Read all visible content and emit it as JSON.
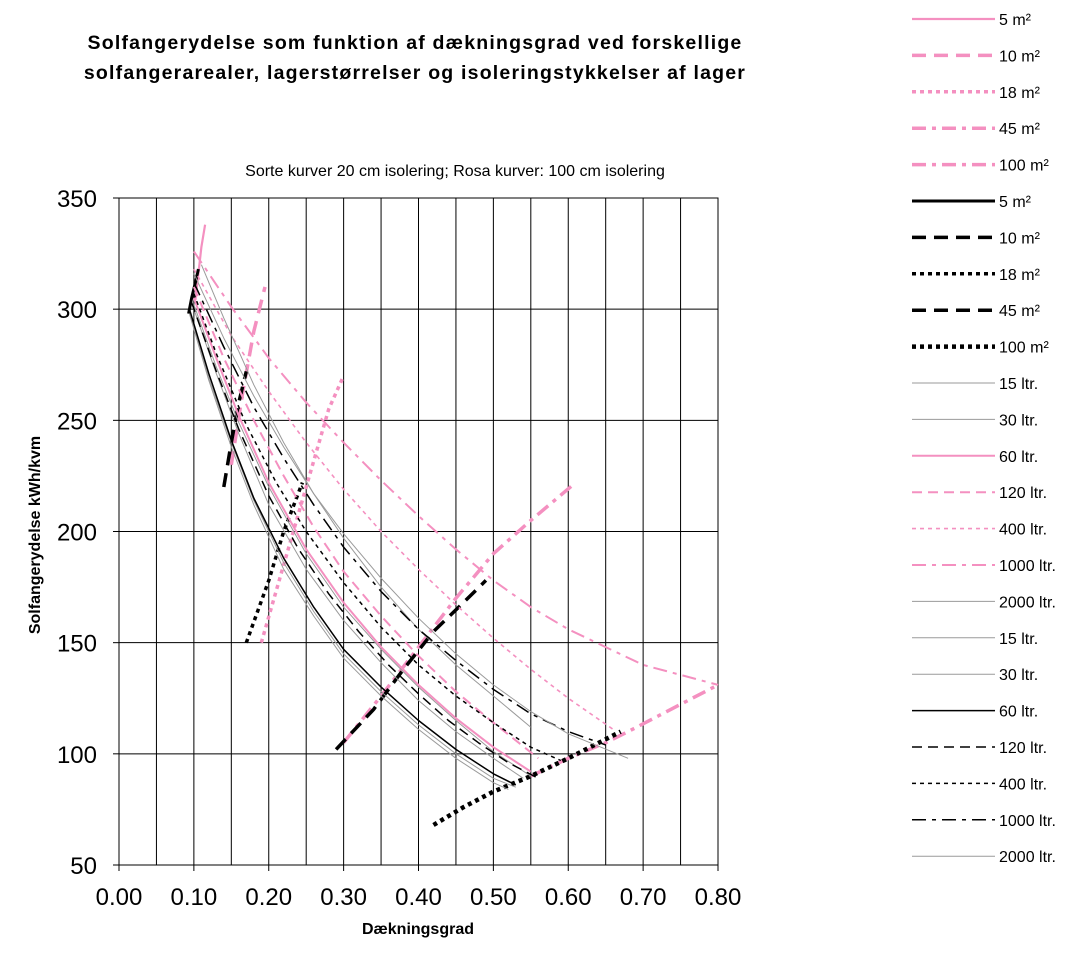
{
  "chart_data": {
    "type": "line",
    "title_line1": "Solfangerydelse som funktion af dækningsgrad ved forskellige",
    "title_line2": "solfangerarealer, lagerstørrelser og isoleringstykkelser af lager",
    "subtitle": "Sorte kurver 20 cm isolering; Rosa kurver: 100 cm isolering",
    "xlabel": "Dækningsgrad",
    "ylabel": "Solfangerydelse kWh/kvm",
    "xlim": [
      0.0,
      0.8
    ],
    "ylim": [
      50,
      350
    ],
    "x_ticks": [
      "0.00",
      "0.10",
      "0.20",
      "0.30",
      "0.40",
      "0.50",
      "0.60",
      "0.70",
      "0.80"
    ],
    "y_ticks": [
      "50",
      "100",
      "150",
      "200",
      "250",
      "300",
      "350"
    ],
    "x_grid_step": 0.05,
    "grid": true,
    "legend_position": "right",
    "colors": {
      "pink": "#f490c0",
      "black": "#000000",
      "grey": "#9a9a9a"
    },
    "series": [
      {
        "name": "5 m²",
        "color": "#f490c0",
        "style": "solid",
        "width": 2.2,
        "x": [
          0.102,
          0.106,
          0.11,
          0.115
        ],
        "y": [
          304,
          316,
          328,
          338
        ]
      },
      {
        "name": "10 m²",
        "color": "#f490c0",
        "style": "longdash",
        "width": 3.5,
        "x": [
          0.15,
          0.165,
          0.18,
          0.195
        ],
        "y": [
          230,
          262,
          290,
          310
        ]
      },
      {
        "name": "18 m²",
        "color": "#f490c0",
        "style": "dot",
        "width": 3.5,
        "x": [
          0.19,
          0.22,
          0.25,
          0.28,
          0.3
        ],
        "y": [
          150,
          185,
          220,
          255,
          270
        ]
      },
      {
        "name": "45 m²",
        "color": "#f490c0",
        "style": "dashdot",
        "width": 3.5,
        "x": [
          0.3,
          0.35,
          0.4,
          0.45,
          0.5,
          0.55,
          0.61
        ],
        "y": [
          105,
          126,
          148,
          170,
          190,
          205,
          222
        ]
      },
      {
        "name": "100 m²",
        "color": "#f490c0",
        "style": "dashdot",
        "width": 3.5,
        "x": [
          0.55,
          0.6,
          0.65,
          0.68,
          0.72,
          0.76,
          0.8
        ],
        "y": [
          90,
          98,
          105,
          110,
          117,
          124,
          131
        ]
      },
      {
        "name": "5 m²",
        "color": "#000000",
        "style": "solid",
        "width": 3,
        "x": [
          0.093,
          0.097,
          0.102,
          0.106
        ],
        "y": [
          298,
          305,
          312,
          318
        ]
      },
      {
        "name": "10 m²",
        "color": "#000000",
        "style": "longdash",
        "width": 3.5,
        "x": [
          0.14,
          0.15,
          0.16,
          0.17
        ],
        "y": [
          220,
          240,
          258,
          272
        ]
      },
      {
        "name": "18 m²",
        "color": "#000000",
        "style": "dot",
        "width": 3.5,
        "x": [
          0.17,
          0.2,
          0.22,
          0.245
        ],
        "y": [
          150,
          178,
          200,
          222
        ]
      },
      {
        "name": "45 m²",
        "color": "#000000",
        "style": "longdash",
        "width": 3.5,
        "x": [
          0.29,
          0.34,
          0.38,
          0.42,
          0.46,
          0.49
        ],
        "y": [
          102,
          120,
          138,
          155,
          168,
          178
        ]
      },
      {
        "name": "100 m²",
        "color": "#000000",
        "style": "dot",
        "width": 4.5,
        "x": [
          0.42,
          0.46,
          0.5,
          0.55,
          0.6,
          0.67
        ],
        "y": [
          68,
          76,
          83,
          90,
          98,
          110
        ]
      },
      {
        "name": "15 ltr.",
        "color": "#9a9a9a",
        "style": "solid",
        "width": 1,
        "x": [
          0.1,
          0.13,
          0.16,
          0.2,
          0.25,
          0.3,
          0.35,
          0.4,
          0.45,
          0.5,
          0.54
        ],
        "y": [
          300,
          271,
          244,
          212,
          183,
          160,
          141,
          124,
          110,
          98,
          89
        ]
      },
      {
        "name": "30 ltr.",
        "color": "#9a9a9a",
        "style": "solid",
        "width": 1,
        "x": [
          0.1,
          0.13,
          0.16,
          0.2,
          0.25,
          0.3,
          0.35,
          0.4,
          0.45,
          0.5,
          0.55
        ],
        "y": [
          302,
          274,
          249,
          220,
          190,
          166,
          147,
          130,
          115,
          101,
          90
        ]
      },
      {
        "name": "60 ltr.",
        "color": "#f490c0",
        "style": "solid",
        "width": 2,
        "x": [
          0.1,
          0.13,
          0.16,
          0.2,
          0.25,
          0.3,
          0.35,
          0.4,
          0.45,
          0.5,
          0.55
        ],
        "y": [
          305,
          278,
          252,
          222,
          192,
          168,
          148,
          131,
          116,
          103,
          92
        ]
      },
      {
        "name": "120 ltr.",
        "color": "#f490c0",
        "style": "dash",
        "width": 2,
        "x": [
          0.1,
          0.14,
          0.18,
          0.22,
          0.26,
          0.3,
          0.35,
          0.4,
          0.45,
          0.5,
          0.56
        ],
        "y": [
          310,
          278,
          250,
          225,
          202,
          182,
          162,
          144,
          128,
          114,
          98
        ]
      },
      {
        "name": "400 ltr.",
        "color": "#f490c0",
        "style": "dot",
        "width": 1.6,
        "x": [
          0.1,
          0.15,
          0.2,
          0.25,
          0.3,
          0.35,
          0.4,
          0.45,
          0.5,
          0.55,
          0.6,
          0.66
        ],
        "y": [
          318,
          288,
          263,
          240,
          219,
          200,
          183,
          167,
          152,
          138,
          125,
          111
        ]
      },
      {
        "name": "1000 ltr.",
        "color": "#f490c0",
        "style": "dashdot",
        "width": 2,
        "x": [
          0.1,
          0.15,
          0.2,
          0.25,
          0.3,
          0.35,
          0.4,
          0.45,
          0.5,
          0.55,
          0.6,
          0.7,
          0.8
        ],
        "y": [
          326,
          301,
          278,
          258,
          240,
          223,
          207,
          192,
          178,
          166,
          156,
          140,
          131
        ]
      },
      {
        "name": "2000 ltr.",
        "color": "#9a9a9a",
        "style": "solid",
        "width": 1,
        "x": [
          0.11,
          0.14,
          0.18,
          0.22,
          0.26,
          0.3,
          0.35,
          0.4,
          0.45,
          0.5,
          0.55
        ],
        "y": [
          320,
          296,
          266,
          240,
          217,
          197,
          175,
          156,
          140,
          126,
          112
        ]
      },
      {
        "name": "15 ltr.",
        "color": "#9a9a9a",
        "style": "solid",
        "width": 1,
        "x": [
          0.094,
          0.12,
          0.15,
          0.18,
          0.22,
          0.26,
          0.3,
          0.35,
          0.4,
          0.45,
          0.5,
          0.52
        ],
        "y": [
          298,
          268,
          238,
          212,
          183,
          162,
          143,
          126,
          111,
          98,
          87,
          84
        ]
      },
      {
        "name": "30 ltr.",
        "color": "#9a9a9a",
        "style": "solid",
        "width": 1,
        "x": [
          0.095,
          0.12,
          0.15,
          0.18,
          0.22,
          0.26,
          0.3,
          0.35,
          0.4,
          0.45,
          0.5,
          0.53
        ],
        "y": [
          298,
          269,
          240,
          214,
          186,
          164,
          145,
          128,
          113,
          100,
          89,
          85
        ]
      },
      {
        "name": "60 ltr.",
        "color": "#000000",
        "style": "solid",
        "width": 1.5,
        "x": [
          0.095,
          0.12,
          0.15,
          0.18,
          0.22,
          0.26,
          0.3,
          0.35,
          0.4,
          0.45,
          0.5,
          0.53
        ],
        "y": [
          299,
          271,
          241,
          215,
          188,
          166,
          147,
          130,
          115,
          102,
          91,
          86
        ]
      },
      {
        "name": "120 ltr.",
        "color": "#000000",
        "style": "dash",
        "width": 1.5,
        "x": [
          0.097,
          0.13,
          0.16,
          0.2,
          0.24,
          0.28,
          0.32,
          0.36,
          0.4,
          0.44,
          0.48,
          0.52,
          0.56
        ],
        "y": [
          303,
          272,
          246,
          216,
          192,
          172,
          155,
          140,
          127,
          115,
          105,
          96,
          89
        ]
      },
      {
        "name": "400 ltr.",
        "color": "#000000",
        "style": "dot",
        "width": 1.5,
        "x": [
          0.1,
          0.13,
          0.17,
          0.21,
          0.25,
          0.3,
          0.35,
          0.4,
          0.45,
          0.5,
          0.55,
          0.59
        ],
        "y": [
          307,
          280,
          248,
          222,
          200,
          177,
          157,
          140,
          126,
          114,
          103,
          97
        ]
      },
      {
        "name": "1000 ltr.",
        "color": "#000000",
        "style": "dashdot",
        "width": 1.5,
        "x": [
          0.1,
          0.14,
          0.18,
          0.22,
          0.26,
          0.3,
          0.35,
          0.4,
          0.45,
          0.5,
          0.55,
          0.6,
          0.65
        ],
        "y": [
          312,
          283,
          256,
          233,
          212,
          193,
          173,
          156,
          142,
          129,
          118,
          110,
          104
        ]
      },
      {
        "name": "2000 ltr.",
        "color": "#9a9a9a",
        "style": "solid",
        "width": 1,
        "x": [
          0.1,
          0.14,
          0.18,
          0.22,
          0.26,
          0.3,
          0.35,
          0.4,
          0.45,
          0.5,
          0.55,
          0.6,
          0.68
        ],
        "y": [
          316,
          287,
          261,
          238,
          217,
          199,
          179,
          161,
          145,
          131,
          119,
          109,
          98
        ]
      }
    ]
  }
}
